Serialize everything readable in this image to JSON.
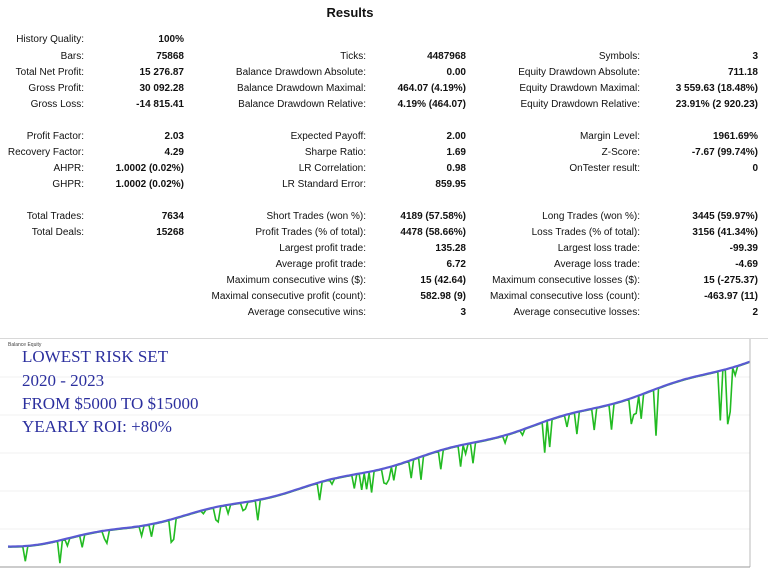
{
  "title": "Results",
  "rows": [
    {
      "top": 32,
      "c": [
        [
          "History Quality:",
          "100%"
        ]
      ]
    },
    {
      "top": 49,
      "c": [
        [
          "Bars:",
          "75868"
        ],
        [
          "Ticks:",
          "4487968"
        ],
        [
          "Symbols:",
          "3"
        ]
      ]
    },
    {
      "top": 65,
      "c": [
        [
          "Total Net Profit:",
          "15 276.87"
        ],
        [
          "Balance Drawdown Absolute:",
          "0.00"
        ],
        [
          "Equity Drawdown Absolute:",
          "711.18"
        ]
      ]
    },
    {
      "top": 81,
      "c": [
        [
          "Gross Profit:",
          "30 092.28"
        ],
        [
          "Balance Drawdown Maximal:",
          "464.07 (4.19%)"
        ],
        [
          "Equity Drawdown Maximal:",
          "3 559.63 (18.48%)"
        ]
      ]
    },
    {
      "top": 97,
      "c": [
        [
          "Gross Loss:",
          "-14 815.41"
        ],
        [
          "Balance Drawdown Relative:",
          "4.19% (464.07)"
        ],
        [
          "Equity Drawdown Relative:",
          "23.91% (2 920.23)"
        ]
      ]
    },
    {
      "top": 129,
      "c": [
        [
          "Profit Factor:",
          "2.03"
        ],
        [
          "Expected Payoff:",
          "2.00"
        ],
        [
          "Margin Level:",
          "1961.69%"
        ]
      ]
    },
    {
      "top": 145,
      "c": [
        [
          "Recovery Factor:",
          "4.29"
        ],
        [
          "Sharpe Ratio:",
          "1.69"
        ],
        [
          "Z-Score:",
          "-7.67 (99.74%)"
        ]
      ]
    },
    {
      "top": 161,
      "c": [
        [
          "AHPR:",
          "1.0002 (0.02%)"
        ],
        [
          "LR Correlation:",
          "0.98"
        ],
        [
          "OnTester result:",
          "0"
        ]
      ]
    },
    {
      "top": 177,
      "c": [
        [
          "GHPR:",
          "1.0002 (0.02%)"
        ],
        [
          "LR Standard Error:",
          "859.95"
        ]
      ]
    },
    {
      "top": 209,
      "c": [
        [
          "Total Trades:",
          "7634"
        ],
        [
          "Short Trades (won %):",
          "4189 (57.58%)"
        ],
        [
          "Long Trades (won %):",
          "3445 (59.97%)"
        ]
      ]
    },
    {
      "top": 225,
      "c": [
        [
          "Total Deals:",
          "15268"
        ],
        [
          "Profit Trades (% of total):",
          "4478 (58.66%)"
        ],
        [
          "Loss Trades (% of total):",
          "3156 (41.34%)"
        ]
      ]
    },
    {
      "top": 241,
      "c": [
        null,
        [
          "Largest profit trade:",
          "135.28"
        ],
        [
          "Largest loss trade:",
          "-99.39"
        ]
      ]
    },
    {
      "top": 257,
      "c": [
        null,
        [
          "Average profit trade:",
          "6.72"
        ],
        [
          "Average loss trade:",
          "-4.69"
        ]
      ]
    },
    {
      "top": 273,
      "c": [
        null,
        [
          "Maximum consecutive wins ($):",
          "15 (42.64)"
        ],
        [
          "Maximum consecutive losses ($):",
          "15 (-275.37)"
        ]
      ]
    },
    {
      "top": 289,
      "c": [
        null,
        [
          "Maximal consecutive profit (count):",
          "582.98 (9)"
        ],
        [
          "Maximal consecutive loss (count):",
          "-463.97 (11)"
        ]
      ]
    },
    {
      "top": 305,
      "c": [
        null,
        [
          "Average consecutive wins:",
          "3"
        ],
        [
          "Average consecutive losses:",
          "2"
        ]
      ]
    }
  ],
  "chart": {
    "legend": "Balance  Equity",
    "overlay": [
      "LOWEST RISK SET",
      "2020 - 2023",
      "FROM $5000 TO $15000",
      "YEARLY ROI: +80%"
    ],
    "colors": {
      "balance": "#5a5ad2",
      "equity": "#22bb22",
      "text": "#2b2f9e"
    }
  }
}
